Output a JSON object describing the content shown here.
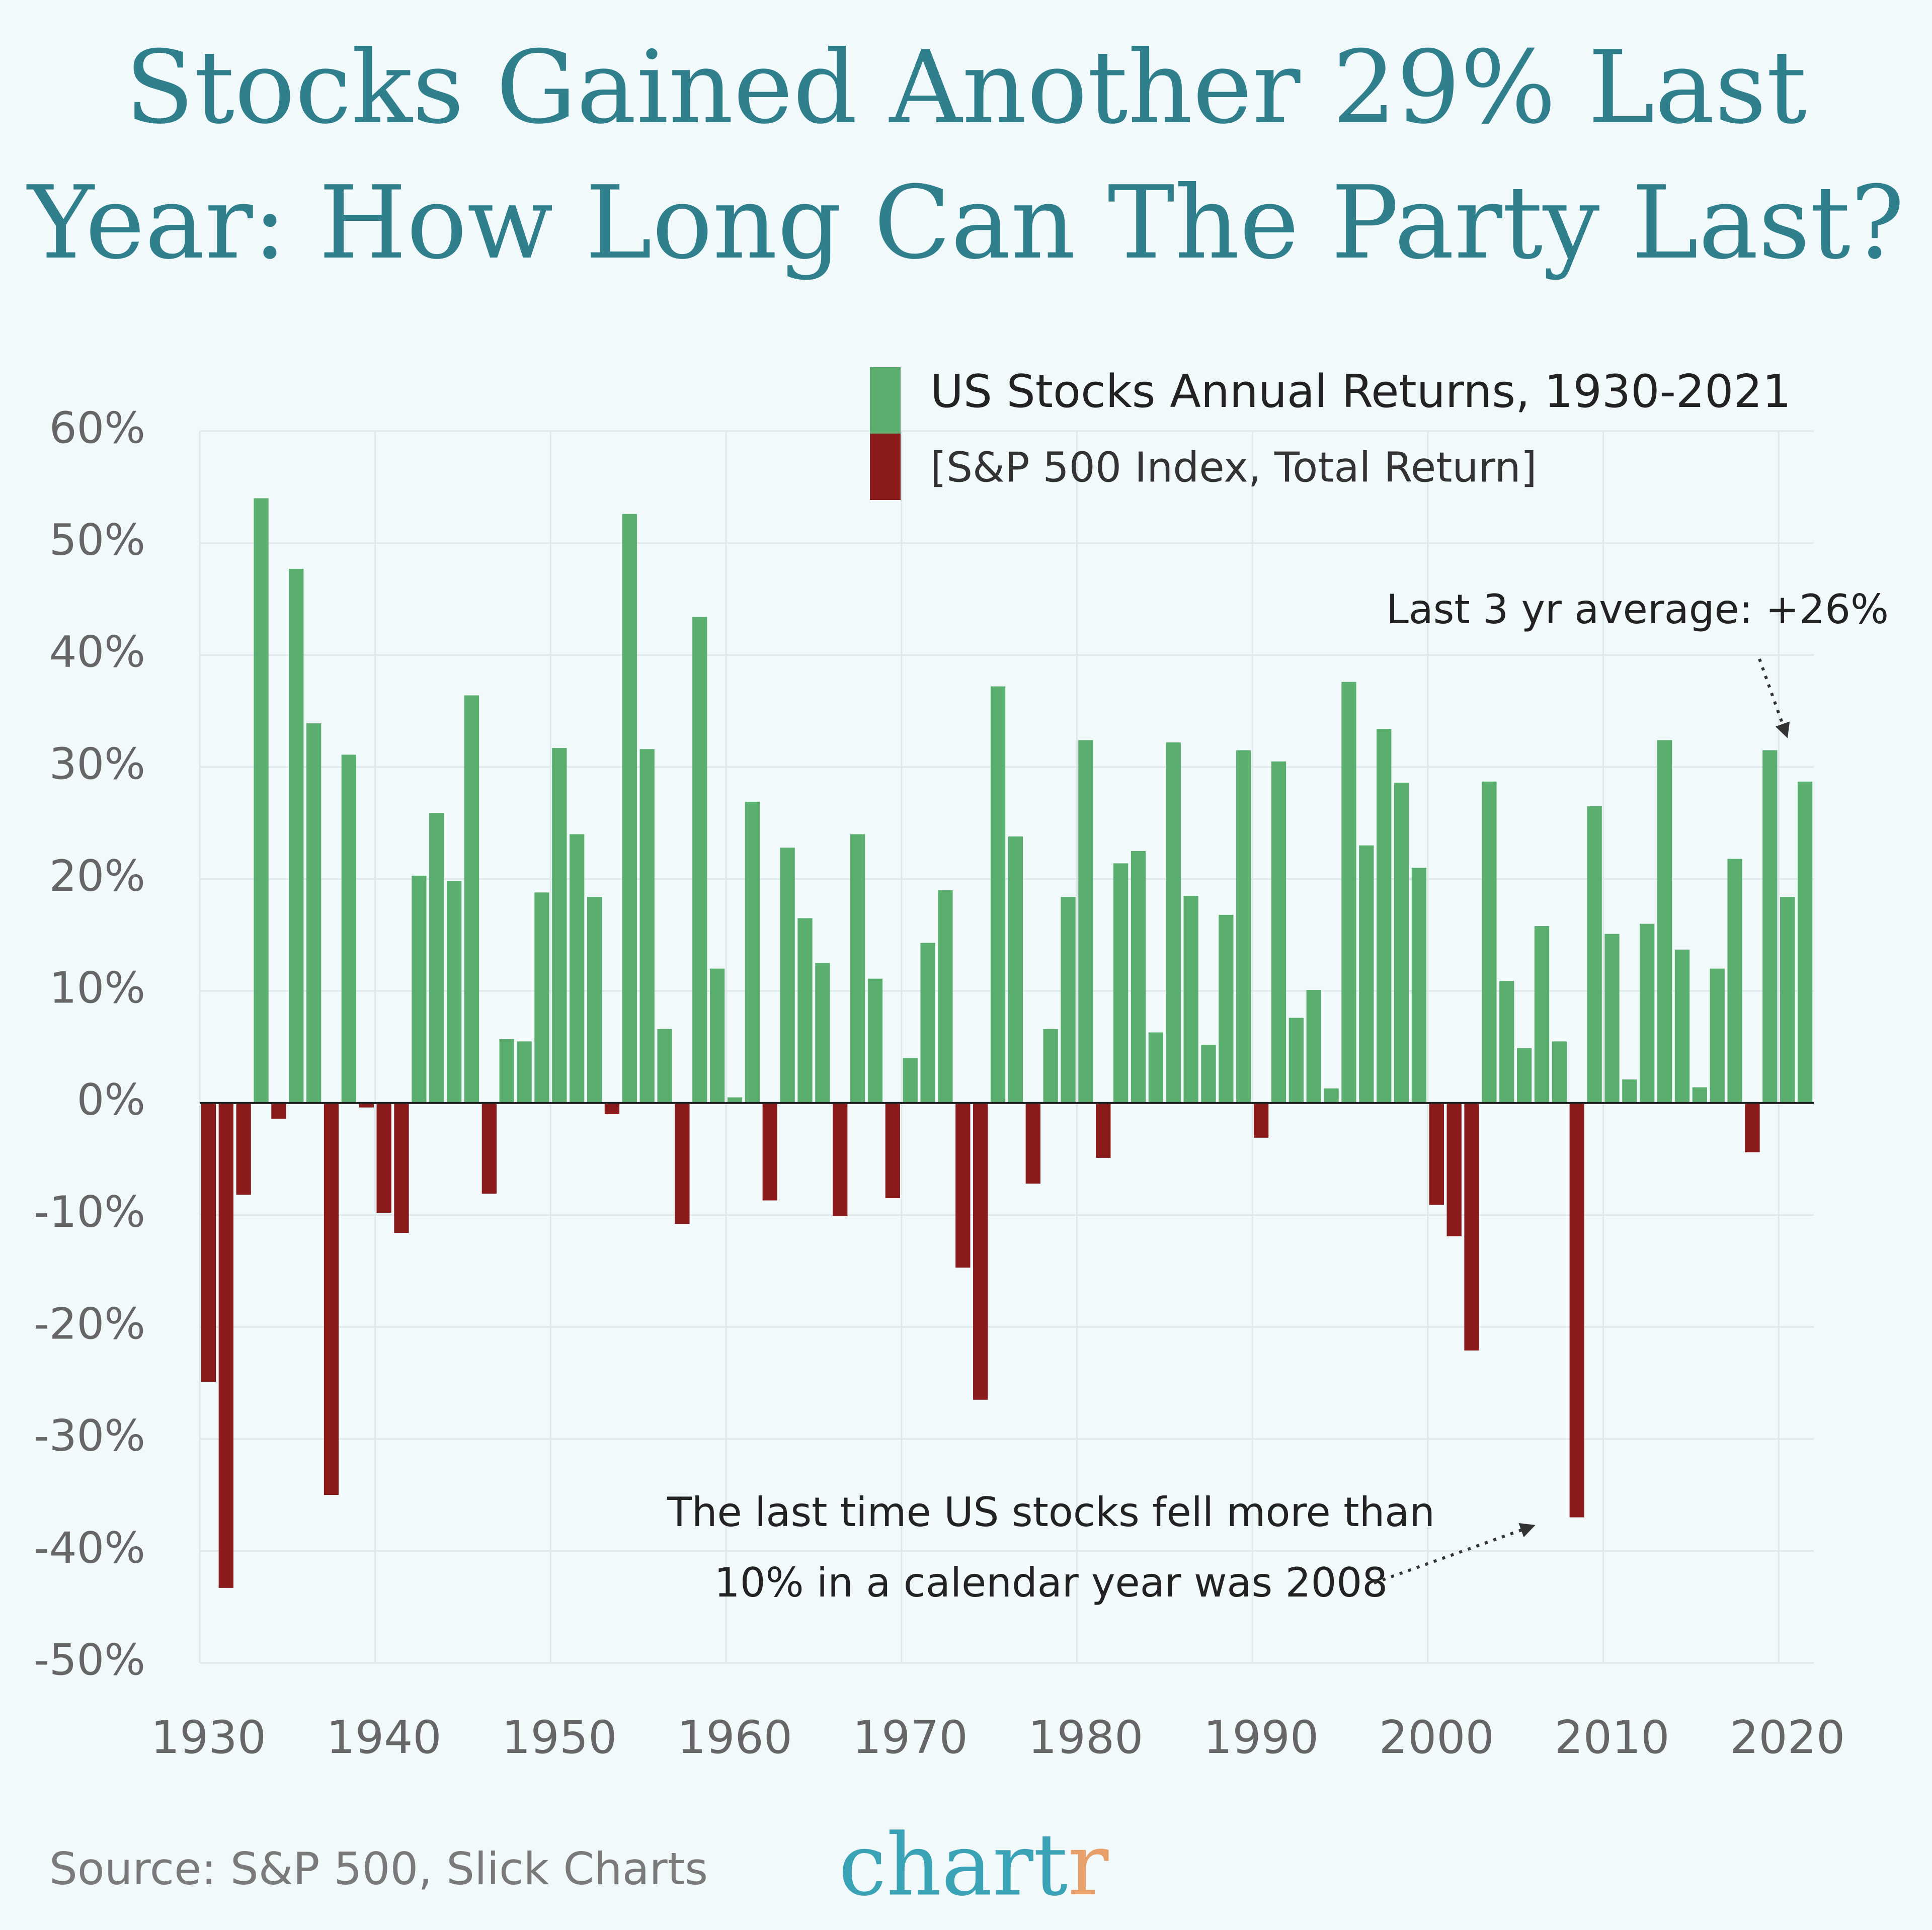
{
  "chart_data": {
    "type": "bar",
    "title": [
      "Stocks Gained Another 29% Last",
      "Year: How Long Can The Party Last?"
    ],
    "subtitle": "[S&P 500 Index, Total Return]",
    "series": [
      {
        "name": "US Stocks Annual Returns, 1930-2021",
        "color": "#5aaf6e",
        "negative_color": "#8b1a1a",
        "values": [
          -24.9,
          -43.3,
          -8.2,
          54.0,
          -1.4,
          47.7,
          33.9,
          -35.0,
          31.1,
          -0.4,
          -9.8,
          -11.6,
          20.3,
          25.9,
          19.8,
          36.4,
          -8.1,
          5.7,
          5.5,
          18.8,
          31.7,
          24.0,
          18.4,
          -1.0,
          52.6,
          31.6,
          6.6,
          -10.8,
          43.4,
          12.0,
          0.5,
          26.9,
          -8.7,
          22.8,
          16.5,
          12.5,
          -10.1,
          24.0,
          11.1,
          -8.5,
          4.0,
          14.3,
          19.0,
          -14.7,
          -26.5,
          37.2,
          23.8,
          -7.2,
          6.6,
          18.4,
          32.4,
          -4.9,
          21.4,
          22.5,
          6.3,
          32.2,
          18.5,
          5.2,
          16.8,
          31.5,
          -3.1,
          30.5,
          7.6,
          10.1,
          1.3,
          37.6,
          23.0,
          33.4,
          28.6,
          21.0,
          -9.1,
          -11.9,
          -22.1,
          28.7,
          10.9,
          4.9,
          15.8,
          5.5,
          -37.0,
          26.5,
          15.1,
          2.1,
          16.0,
          32.4,
          13.7,
          1.4,
          12.0,
          21.8,
          -4.4,
          31.5,
          18.4,
          28.7
        ]
      }
    ],
    "x": [
      1930,
      1931,
      1932,
      1933,
      1934,
      1935,
      1936,
      1937,
      1938,
      1939,
      1940,
      1941,
      1942,
      1943,
      1944,
      1945,
      1946,
      1947,
      1948,
      1949,
      1950,
      1951,
      1952,
      1953,
      1954,
      1955,
      1956,
      1957,
      1958,
      1959,
      1960,
      1961,
      1962,
      1963,
      1964,
      1965,
      1966,
      1967,
      1968,
      1969,
      1970,
      1971,
      1972,
      1973,
      1974,
      1975,
      1976,
      1977,
      1978,
      1979,
      1980,
      1981,
      1982,
      1983,
      1984,
      1985,
      1986,
      1987,
      1988,
      1989,
      1990,
      1991,
      1992,
      1993,
      1994,
      1995,
      1996,
      1997,
      1998,
      1999,
      2000,
      2001,
      2002,
      2003,
      2004,
      2005,
      2006,
      2007,
      2008,
      2009,
      2010,
      2011,
      2012,
      2013,
      2014,
      2015,
      2016,
      2017,
      2018,
      2019,
      2020,
      2021
    ],
    "xlim": [
      1929.5,
      2021.5
    ],
    "xticks": [
      1930,
      1940,
      1950,
      1960,
      1970,
      1980,
      1990,
      2000,
      2010,
      2020
    ],
    "ylim": [
      -50,
      60
    ],
    "yticks": [
      {
        "value": -50,
        "label": "-50%"
      },
      {
        "value": -40,
        "label": "-40%"
      },
      {
        "value": -30,
        "label": "-30%"
      },
      {
        "value": -20,
        "label": "-20%"
      },
      {
        "value": -10,
        "label": "-10%"
      },
      {
        "value": 0,
        "label": "0%"
      },
      {
        "value": 10,
        "label": "10%"
      },
      {
        "value": 20,
        "label": "20%"
      },
      {
        "value": 30,
        "label": "30%"
      },
      {
        "value": 40,
        "label": "40%"
      },
      {
        "value": 50,
        "label": "50%"
      },
      {
        "value": 60,
        "label": "60%"
      }
    ],
    "grid": true,
    "annotations": [
      "Last 3 yr average: +26%",
      "The last time US stocks fell more than",
      "10% in a calendar year was 2008"
    ],
    "source": "Source: S&P 500, Slick Charts",
    "logo": "chartr"
  }
}
